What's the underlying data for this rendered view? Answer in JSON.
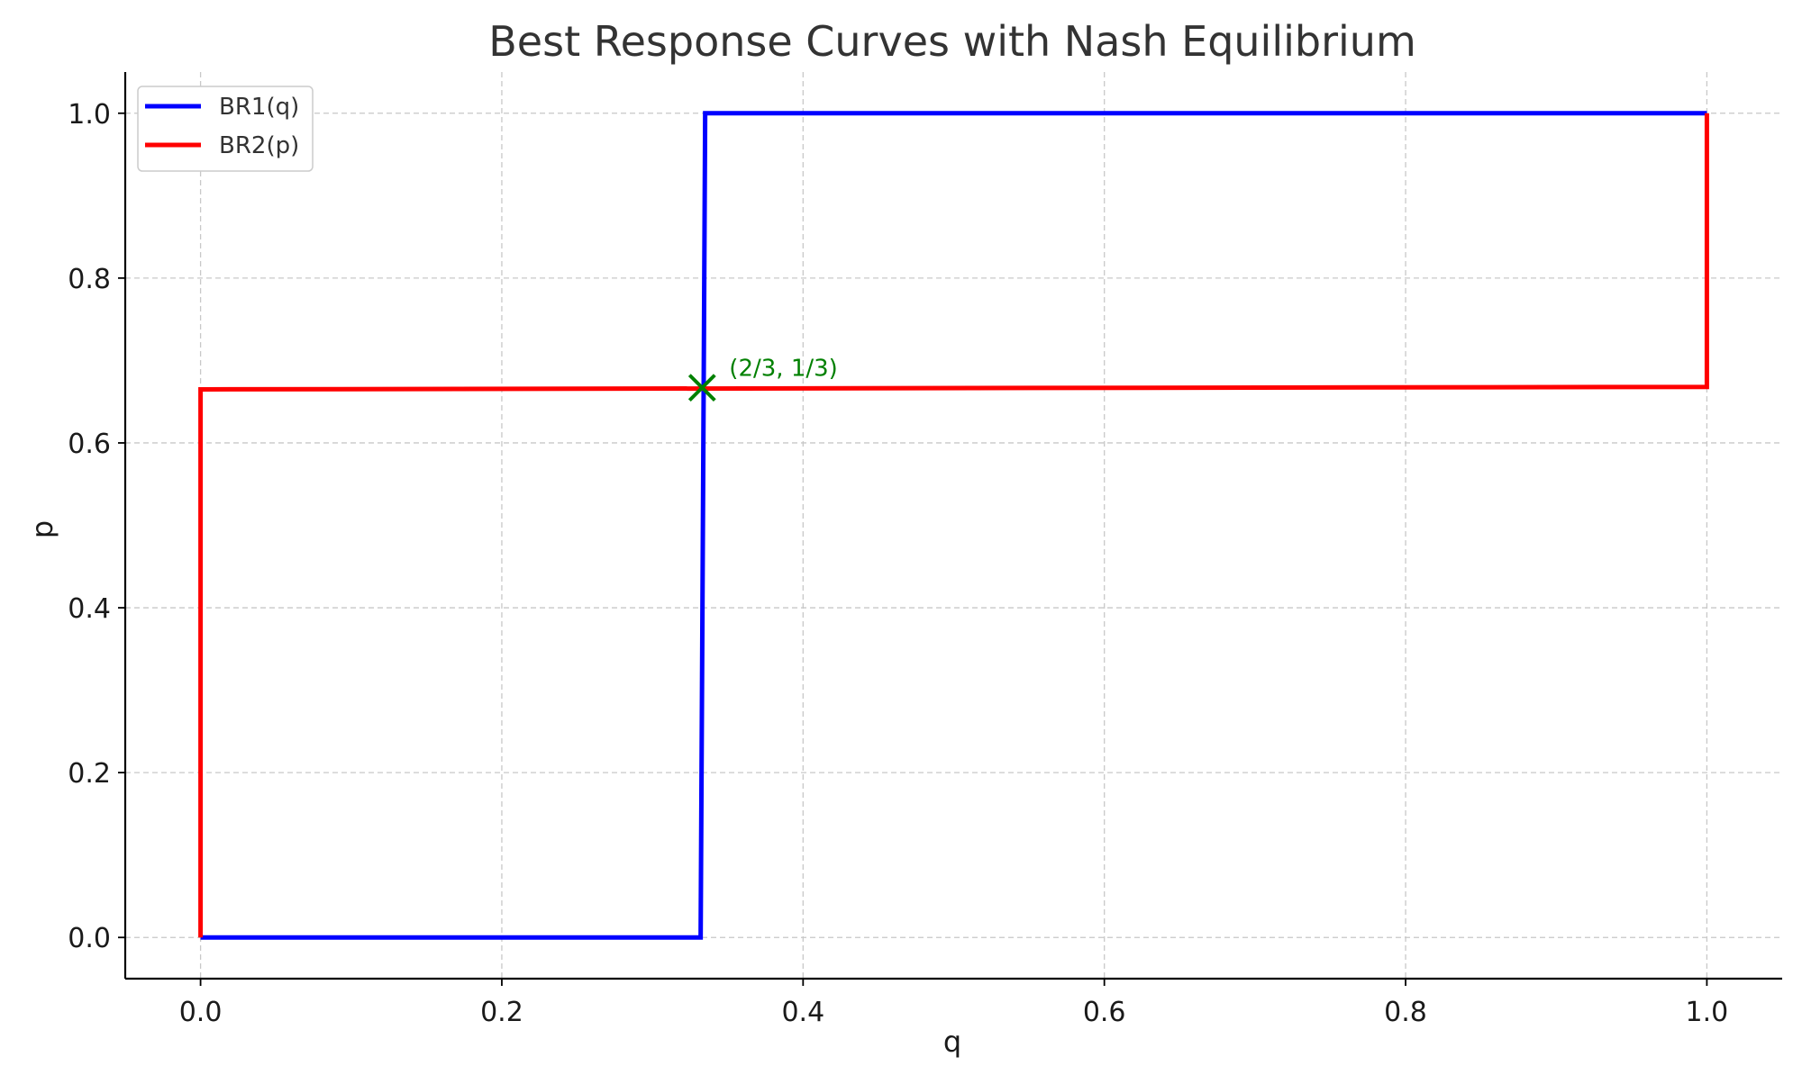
{
  "chart_data": {
    "type": "line",
    "title": "Best Response Curves with Nash Equilibrium",
    "xlabel": "q",
    "ylabel": "p",
    "xlim": [
      -0.05,
      1.05
    ],
    "ylim": [
      -0.05,
      1.05
    ],
    "xticks": [
      0.0,
      0.2,
      0.4,
      0.6,
      0.8,
      1.0
    ],
    "yticks": [
      0.0,
      0.2,
      0.4,
      0.6,
      0.8,
      1.0
    ],
    "xtick_labels": [
      "0.0",
      "0.2",
      "0.4",
      "0.6",
      "0.8",
      "1.0"
    ],
    "ytick_labels": [
      "0.0",
      "0.2",
      "0.4",
      "0.6",
      "0.8",
      "1.0"
    ],
    "grid": true,
    "legend_position": "top-left",
    "series": [
      {
        "name": "BR1(q)",
        "color": "#0000ff",
        "x": [
          0.0,
          0.332,
          0.335,
          1.0
        ],
        "y": [
          0.0,
          0.0,
          1.0,
          1.0
        ]
      },
      {
        "name": "BR2(p)",
        "color": "#ff0000",
        "x": [
          0.0,
          0.0,
          1.0,
          1.0
        ],
        "y": [
          0.0,
          0.665,
          0.668,
          1.0
        ]
      }
    ],
    "equilibrium": {
      "x": 0.333,
      "y": 0.667,
      "marker": "x",
      "color": "#008000",
      "label": "(2/3, 1/3)"
    }
  }
}
